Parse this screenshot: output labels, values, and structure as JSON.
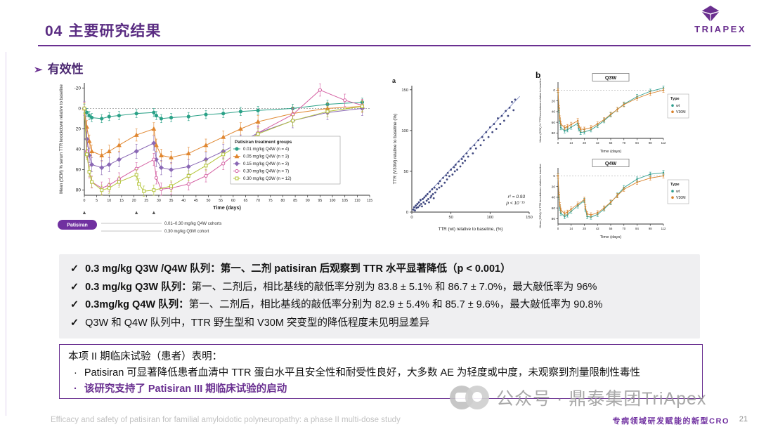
{
  "header": {
    "section_number": "04",
    "title": "主要研究结果",
    "logo_text": "TRIAPEX"
  },
  "section": {
    "arrow": "➢",
    "label": "有效性"
  },
  "chart_data": [
    {
      "type": "line",
      "xlabel": "Time (days)",
      "ylabel": "Mean (SEM) % serum TTR knockdown relative to baseline",
      "xlim": [
        0,
        115
      ],
      "ylim": [
        -25,
        85
      ],
      "yticks": [
        -20,
        0,
        20,
        40,
        60,
        80
      ],
      "xtick_step": 5,
      "y_axis_inverted": true,
      "legend_title": "Patisiran treatment groups",
      "series": [
        {
          "name": "0.01 mg/kg Q4W (n = 4)",
          "color": "#2aa187",
          "marker": "circle",
          "filled": true,
          "err": 4,
          "x": [
            0,
            1,
            2,
            3,
            7,
            10,
            14,
            21,
            28,
            29,
            31,
            35,
            42,
            49,
            56,
            63,
            70,
            84,
            98,
            112
          ],
          "y": [
            0,
            4,
            7,
            9,
            10,
            8,
            7,
            5,
            4,
            7,
            10,
            9,
            8,
            6,
            5,
            3,
            2,
            0,
            -4,
            -6
          ]
        },
        {
          "name": "0.05 mg/kg Q4W (n = 3)",
          "color": "#e0862f",
          "marker": "triangle",
          "filled": true,
          "err": 6,
          "x": [
            0,
            1,
            2,
            3,
            7,
            10,
            14,
            21,
            28,
            29,
            31,
            35,
            42,
            49,
            56,
            63,
            70,
            84,
            98,
            112
          ],
          "y": [
            0,
            18,
            32,
            42,
            46,
            42,
            36,
            26,
            20,
            36,
            46,
            48,
            44,
            36,
            28,
            20,
            13,
            5,
            0,
            -2
          ]
        },
        {
          "name": "0.15 mg/kg Q4W (n = 3)",
          "color": "#8a68b5",
          "marker": "diamond",
          "filled": true,
          "err": 7,
          "x": [
            0,
            1,
            2,
            3,
            7,
            10,
            14,
            21,
            28,
            29,
            31,
            35,
            42,
            49,
            56,
            63,
            70,
            84,
            98,
            112
          ],
          "y": [
            0,
            30,
            46,
            55,
            58,
            55,
            50,
            42,
            34,
            50,
            58,
            60,
            57,
            50,
            42,
            33,
            24,
            12,
            4,
            0
          ]
        },
        {
          "name": "0.30 mg/kg Q4W (n = 7)",
          "color": "#d45fa2",
          "marker": "circle",
          "filled": false,
          "err": 6,
          "x": [
            0,
            1,
            2,
            3,
            7,
            10,
            14,
            21,
            28,
            29,
            31,
            35,
            42,
            49,
            56,
            63,
            70,
            84,
            95,
            105,
            112
          ],
          "y": [
            0,
            42,
            62,
            72,
            78,
            75,
            69,
            59,
            50,
            68,
            79,
            78,
            74,
            66,
            54,
            40,
            24,
            6,
            -18,
            -8,
            -3
          ]
        },
        {
          "name": "0.30 mg/kg Q3W (n = 12)",
          "color": "#b3c437",
          "marker": "square",
          "filled": false,
          "err": 5,
          "x": [
            0,
            1,
            2,
            3,
            7,
            10,
            14,
            21,
            22,
            24,
            28,
            35,
            42,
            49,
            56,
            63,
            70,
            84,
            98,
            112
          ],
          "y": [
            0,
            45,
            62,
            72,
            80,
            78,
            72,
            65,
            74,
            81,
            80,
            76,
            66,
            56,
            45,
            35,
            25,
            12,
            3,
            -2
          ]
        }
      ],
      "annotations": {
        "drug_label": "Patisiran",
        "cohort1": "0.01–0.30 mg/kg Q4W cohorts",
        "cohort2": "0.30 mg/kg Q3W cohort"
      }
    },
    {
      "type": "scatter",
      "panel": "a",
      "xlabel": "TTR (wt) relative to baseline, (%)",
      "ylabel": "TTR (V30M) relative to baseline (%)",
      "xlim": [
        0,
        150
      ],
      "ylim": [
        0,
        155
      ],
      "ticks": [
        0,
        50,
        100,
        150
      ],
      "stats": [
        "r² = 0.93",
        "p < 10⁻¹⁵"
      ],
      "color": "#27306e",
      "fit_line": {
        "x1": 0,
        "y1": 2,
        "x2": 138,
        "y2": 142
      },
      "points": [
        [
          2,
          3
        ],
        [
          3,
          6
        ],
        [
          4,
          2
        ],
        [
          5,
          8
        ],
        [
          6,
          5
        ],
        [
          7,
          10
        ],
        [
          8,
          6
        ],
        [
          9,
          12
        ],
        [
          10,
          8
        ],
        [
          11,
          15
        ],
        [
          12,
          10
        ],
        [
          13,
          7
        ],
        [
          14,
          16
        ],
        [
          15,
          12
        ],
        [
          16,
          18
        ],
        [
          17,
          10
        ],
        [
          18,
          20
        ],
        [
          19,
          14
        ],
        [
          20,
          22
        ],
        [
          21,
          16
        ],
        [
          22,
          12
        ],
        [
          23,
          25
        ],
        [
          24,
          18
        ],
        [
          25,
          20
        ],
        [
          26,
          28
        ],
        [
          27,
          22
        ],
        [
          28,
          17
        ],
        [
          29,
          30
        ],
        [
          30,
          24
        ],
        [
          32,
          28
        ],
        [
          34,
          35
        ],
        [
          35,
          30
        ],
        [
          36,
          38
        ],
        [
          38,
          32
        ],
        [
          40,
          42
        ],
        [
          42,
          36
        ],
        [
          44,
          45
        ],
        [
          45,
          40
        ],
        [
          46,
          48
        ],
        [
          48,
          44
        ],
        [
          50,
          52
        ],
        [
          52,
          46
        ],
        [
          54,
          55
        ],
        [
          55,
          50
        ],
        [
          56,
          58
        ],
        [
          58,
          52
        ],
        [
          60,
          62
        ],
        [
          62,
          56
        ],
        [
          64,
          65
        ],
        [
          65,
          60
        ],
        [
          66,
          68
        ],
        [
          68,
          63
        ],
        [
          70,
          72
        ],
        [
          72,
          68
        ],
        [
          75,
          78
        ],
        [
          78,
          72
        ],
        [
          80,
          82
        ],
        [
          82,
          78
        ],
        [
          85,
          88
        ],
        [
          88,
          82
        ],
        [
          90,
          92
        ],
        [
          92,
          88
        ],
        [
          95,
          98
        ],
        [
          98,
          92
        ],
        [
          100,
          104
        ],
        [
          103,
          98
        ],
        [
          105,
          108
        ],
        [
          108,
          102
        ],
        [
          110,
          115
        ],
        [
          113,
          108
        ],
        [
          115,
          118
        ],
        [
          118,
          112
        ],
        [
          120,
          124
        ],
        [
          123,
          118
        ],
        [
          125,
          128
        ],
        [
          128,
          135
        ],
        [
          130,
          125
        ],
        [
          132,
          138
        ]
      ]
    },
    {
      "type": "line",
      "panel": "b",
      "title": "Q3W",
      "xlabel": "Time (days)",
      "ylabel": "Mean (SEM) % TTR knockdown relative to baseline",
      "xlim": [
        0,
        112
      ],
      "ylim": [
        -15,
        90
      ],
      "yticks": [
        0,
        20,
        40,
        60,
        80
      ],
      "xticks": [
        0,
        14,
        28,
        42,
        56,
        70,
        84,
        98,
        112
      ],
      "legend_title": "Type",
      "series": [
        {
          "name": "wt",
          "color": "#2e9e8f",
          "err": 4,
          "x": [
            0,
            1,
            2,
            3,
            7,
            10,
            14,
            21,
            22,
            24,
            28,
            35,
            42,
            49,
            56,
            63,
            70,
            84,
            98,
            112
          ],
          "y": [
            0,
            38,
            58,
            70,
            76,
            74,
            69,
            62,
            72,
            79,
            78,
            74,
            66,
            57,
            46,
            36,
            26,
            12,
            2,
            -4
          ]
        },
        {
          "name": "V30M",
          "color": "#d9822b",
          "err": 4,
          "x": [
            0,
            1,
            2,
            3,
            7,
            10,
            14,
            21,
            22,
            24,
            28,
            35,
            42,
            49,
            56,
            63,
            70,
            84,
            98,
            112
          ],
          "y": [
            0,
            33,
            52,
            63,
            70,
            68,
            64,
            57,
            66,
            73,
            73,
            70,
            63,
            55,
            45,
            36,
            27,
            15,
            6,
            0
          ]
        }
      ]
    },
    {
      "type": "line",
      "panel": "b",
      "title": "Q4W",
      "xlabel": "Time (days)",
      "ylabel": "Mean (SEM) % TTR knockdown relative to baseline",
      "xlim": [
        0,
        112
      ],
      "ylim": [
        -15,
        90
      ],
      "yticks": [
        0,
        20,
        40,
        60,
        80
      ],
      "xticks": [
        0,
        14,
        28,
        42,
        56,
        70,
        84,
        98,
        112
      ],
      "legend_title": "Type",
      "series": [
        {
          "name": "wt",
          "color": "#2e9e8f",
          "err": 4,
          "x": [
            0,
            1,
            2,
            3,
            7,
            10,
            14,
            21,
            28,
            29,
            31,
            35,
            42,
            49,
            56,
            63,
            70,
            84,
            98,
            112
          ],
          "y": [
            0,
            40,
            60,
            70,
            76,
            73,
            66,
            56,
            46,
            62,
            76,
            77,
            72,
            62,
            50,
            36,
            22,
            6,
            -3,
            -6
          ]
        },
        {
          "name": "V30M",
          "color": "#d9822b",
          "err": 4,
          "x": [
            0,
            1,
            2,
            3,
            7,
            10,
            14,
            21,
            28,
            29,
            31,
            35,
            42,
            49,
            56,
            63,
            70,
            84,
            98,
            112
          ],
          "y": [
            0,
            35,
            54,
            64,
            70,
            68,
            62,
            53,
            44,
            58,
            71,
            73,
            69,
            60,
            49,
            37,
            25,
            12,
            4,
            0
          ]
        }
      ]
    }
  ],
  "findings": {
    "items": [
      {
        "check": "✓",
        "bold": "0.3 mg/kg Q3W /Q4W 队列：",
        "rest": "第一、二剂 patisiran 后观察到 TTR 水平显著降低（p < 0.001）"
      },
      {
        "check": "✓",
        "bold": "0.3 mg/kg Q3W 队列：",
        "rest": "第一、二剂后，相比基线的敲低率分别为 83.8 ± 5.1% 和 86.7 ± 7.0%，最大敲低率为 96%"
      },
      {
        "check": "✓",
        "bold": "0.3mg/kg Q4W 队列：",
        "rest": "第一、二剂后，相比基线的敲低率分别为 82.9 ± 5.4% 和 85.7 ± 9.6%，最大敲低率为 90.8%"
      },
      {
        "check": "✓",
        "bold": "",
        "rest": "Q3W 和 Q4W 队列中，TTR 野生型和 V30M 突变型的降低程度未见明显差异"
      }
    ]
  },
  "conclusion": {
    "title": "本项 II 期临床试验（患者）表明：",
    "bullet_char": "·",
    "bullets": [
      {
        "text": "Patisiran 可显著降低患者血清中 TTR 蛋白水平且安全性和耐受性良好，大多数 AE 为轻度或中度，未观察到剂量限制性毒性",
        "highlight": false
      },
      {
        "text": "该研究支持了 Patisiran III 期临床试验的启动",
        "highlight": true
      }
    ]
  },
  "watermark": {
    "text": "公众号 · 鼎泰集团TriApex"
  },
  "footer": {
    "reference": "Efficacy and safety of patisiran for familial amyloidotic polyneuropathy: a phase II multi-dose study",
    "tagline": "专病领域研发赋能的新型CRO",
    "page": "21"
  }
}
